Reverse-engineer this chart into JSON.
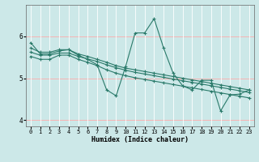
{
  "xlabel": "Humidex (Indice chaleur)",
  "bg_color": "#cce8e8",
  "line_color": "#2a7a6a",
  "xlim": [
    -0.5,
    23.5
  ],
  "ylim": [
    3.85,
    6.75
  ],
  "yticks": [
    4,
    5,
    6
  ],
  "xticks": [
    0,
    1,
    2,
    3,
    4,
    5,
    6,
    7,
    8,
    9,
    10,
    11,
    12,
    13,
    14,
    15,
    16,
    17,
    18,
    19,
    20,
    21,
    22,
    23
  ],
  "line1_x": [
    0,
    1,
    2,
    3,
    4,
    5,
    6,
    7,
    8,
    9,
    10,
    11,
    12,
    13,
    14,
    15,
    16,
    17,
    18,
    19,
    20,
    21,
    22,
    23
  ],
  "line1_y": [
    5.85,
    5.58,
    5.58,
    5.65,
    5.68,
    5.55,
    5.45,
    5.32,
    4.72,
    4.58,
    5.28,
    6.08,
    6.08,
    6.42,
    5.72,
    5.12,
    4.82,
    4.72,
    4.95,
    4.95,
    4.22,
    4.6,
    4.62,
    4.72
  ],
  "line2_x": [
    0,
    1,
    2,
    3,
    4,
    5,
    6,
    7,
    8,
    9,
    10,
    11,
    12,
    13,
    14,
    15,
    16,
    17,
    18,
    19,
    20,
    21,
    22,
    23
  ],
  "line2_y": [
    5.72,
    5.62,
    5.62,
    5.68,
    5.68,
    5.58,
    5.52,
    5.45,
    5.38,
    5.3,
    5.24,
    5.2,
    5.16,
    5.12,
    5.08,
    5.04,
    5.0,
    4.96,
    4.92,
    4.88,
    4.84,
    4.8,
    4.76,
    4.72
  ],
  "line3_x": [
    0,
    1,
    2,
    3,
    4,
    5,
    6,
    7,
    8,
    9,
    10,
    11,
    12,
    13,
    14,
    15,
    16,
    17,
    18,
    19,
    20,
    21,
    22,
    23
  ],
  "line3_y": [
    5.62,
    5.55,
    5.55,
    5.6,
    5.6,
    5.52,
    5.46,
    5.4,
    5.32,
    5.25,
    5.19,
    5.14,
    5.1,
    5.06,
    5.02,
    4.98,
    4.94,
    4.9,
    4.86,
    4.82,
    4.78,
    4.74,
    4.7,
    4.66
  ],
  "line4_x": [
    0,
    1,
    2,
    3,
    4,
    5,
    6,
    7,
    8,
    9,
    10,
    11,
    12,
    13,
    14,
    15,
    16,
    17,
    18,
    19,
    20,
    21,
    22,
    23
  ],
  "line4_y": [
    5.52,
    5.45,
    5.45,
    5.55,
    5.55,
    5.45,
    5.38,
    5.3,
    5.2,
    5.12,
    5.06,
    5.01,
    4.97,
    4.93,
    4.89,
    4.85,
    4.81,
    4.77,
    4.73,
    4.69,
    4.65,
    4.61,
    4.57,
    4.53
  ],
  "hgrid_color": "#ffaaaa",
  "vgrid_color": "#ffffff"
}
